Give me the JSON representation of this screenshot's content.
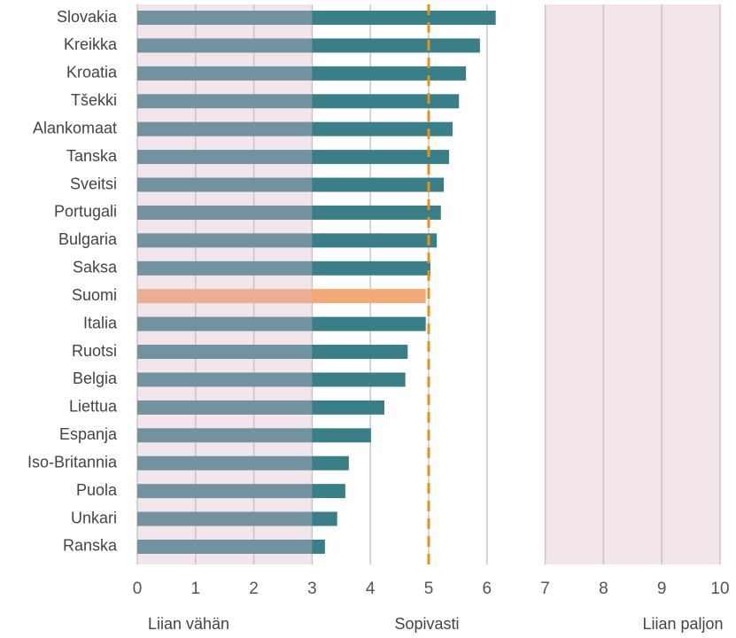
{
  "chart_data": {
    "type": "hbar",
    "categories": [
      "Slovakia",
      "Kreikka",
      "Kroatia",
      "Tšekki",
      "Alankomaat",
      "Tanska",
      "Sveitsi",
      "Portugali",
      "Bulgaria",
      "Saksa",
      "Suomi",
      "Italia",
      "Ruotsi",
      "Belgia",
      "Liettua",
      "Espanja",
      "Iso-Britannia",
      "Puola",
      "Unkari",
      "Ranska"
    ],
    "values": [
      6.15,
      5.88,
      5.64,
      5.52,
      5.41,
      5.35,
      5.26,
      5.21,
      5.14,
      5.03,
      4.95,
      4.95,
      4.64,
      4.6,
      4.24,
      4.01,
      3.63,
      3.57,
      3.43,
      3.22
    ],
    "colors": [
      "#3a7f87",
      "#3a7f87",
      "#3a7f87",
      "#3a7f87",
      "#3a7f87",
      "#3a7f87",
      "#3a7f87",
      "#3a7f87",
      "#3a7f87",
      "#3a7f87",
      "#f2aa78",
      "#3a7f87",
      "#3a7f87",
      "#3a7f87",
      "#3a7f87",
      "#3a7f87",
      "#3a7f87",
      "#3a7f87",
      "#3a7f87",
      "#3a7f87"
    ],
    "xlim": [
      0,
      10
    ],
    "xticks": [
      0,
      1,
      2,
      3,
      4,
      5,
      6,
      7,
      8,
      9,
      10
    ],
    "grid": true,
    "shaded_ranges": [
      [
        0,
        3
      ],
      [
        7,
        10
      ]
    ],
    "shade_color": "#d9b8c9",
    "reference_line": {
      "value": 5,
      "color": "#e8901a",
      "dashed": true
    },
    "annotations": [
      "Liian vähän",
      "Sopivasti",
      "Liian paljon"
    ]
  }
}
